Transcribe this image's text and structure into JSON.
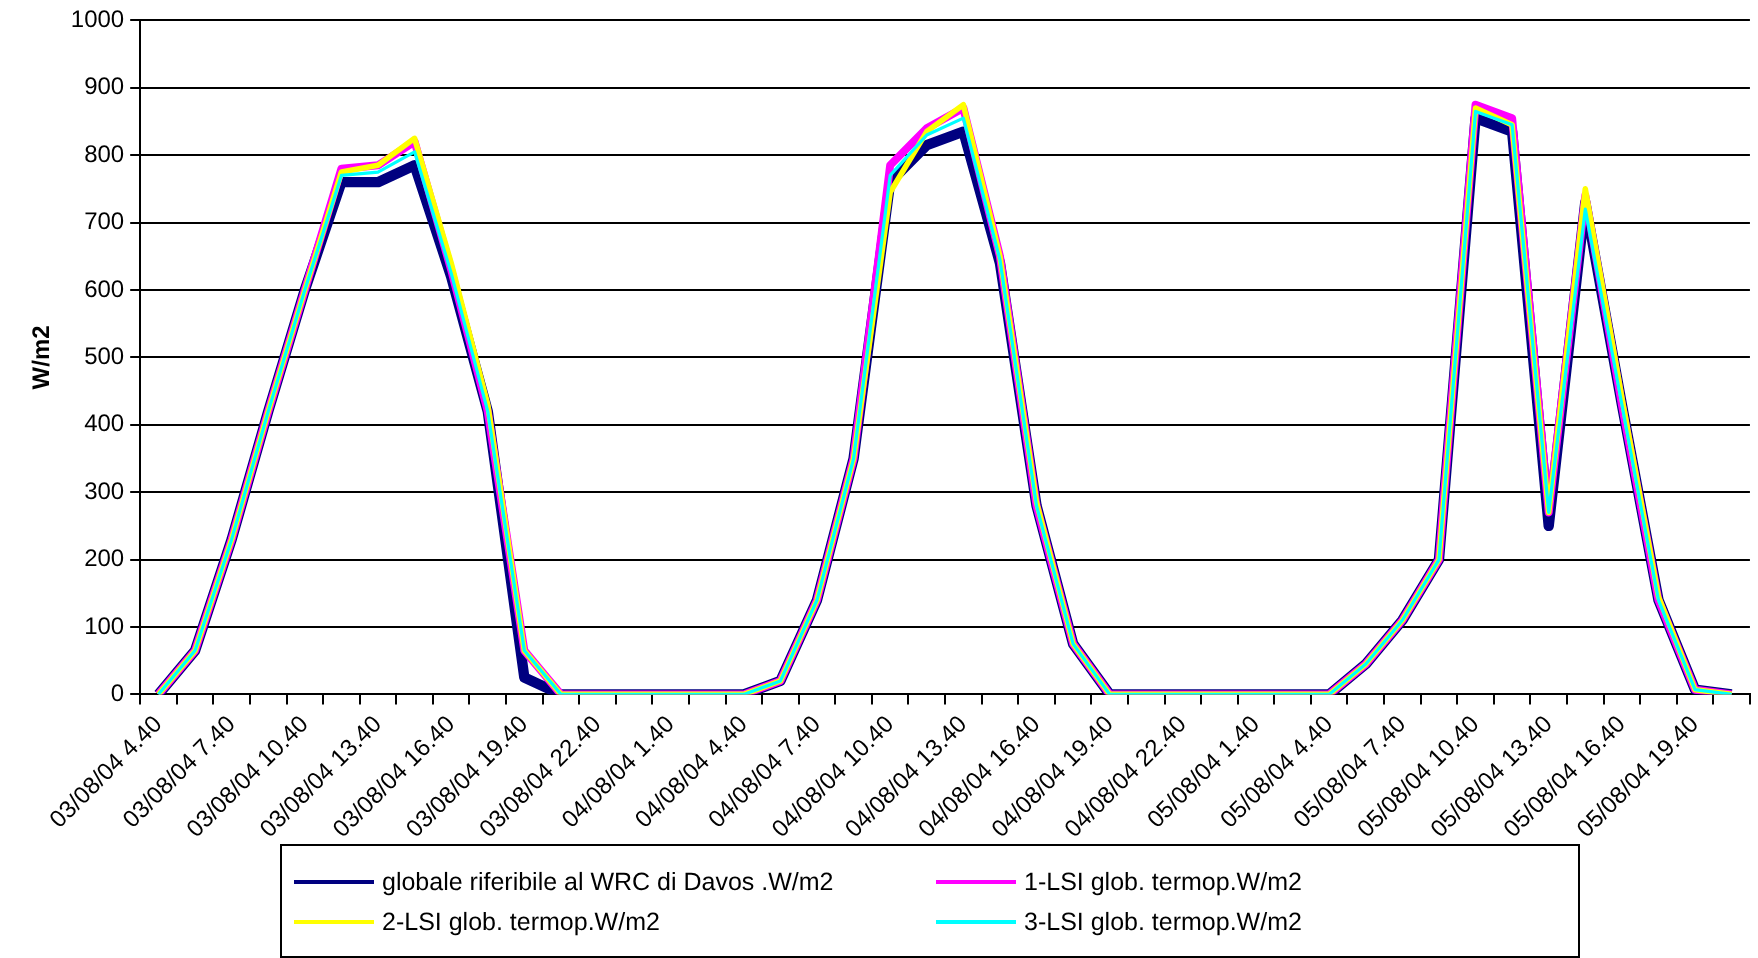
{
  "chart_data": {
    "type": "line",
    "ylabel": "W/m2",
    "categories": [
      "03/08/04 4.40",
      null,
      "03/08/04 7.40",
      null,
      "03/08/04 10.40",
      null,
      "03/08/04 13.40",
      null,
      "03/08/04 16.40",
      null,
      "03/08/04 19.40",
      null,
      "03/08/04 22.40",
      null,
      "04/08/04 1.40",
      null,
      "04/08/04 4.40",
      null,
      "04/08/04 7.40",
      null,
      "04/08/04 10.40",
      null,
      "04/08/04 13.40",
      null,
      "04/08/04 16.40",
      null,
      "04/08/04 19.40",
      null,
      "04/08/04 22.40",
      null,
      "05/08/04 1.40",
      null,
      "05/08/04 4.40",
      null,
      "05/08/04 7.40",
      null,
      "05/08/04 10.40",
      null,
      "05/08/04 13.40",
      null,
      "05/08/04 16.40",
      null,
      "05/08/04 19.40",
      null
    ],
    "series": [
      {
        "name": "globale riferibile al WRC di Davos .W/m2",
        "color": "#000080",
        "values": [
          0,
          65,
          230,
          420,
          600,
          760,
          760,
          785,
          620,
          420,
          25,
          0,
          0,
          0,
          0,
          0,
          0,
          20,
          140,
          350,
          760,
          815,
          835,
          640,
          280,
          75,
          0,
          0,
          0,
          0,
          0,
          0,
          0,
          45,
          110,
          200,
          855,
          835,
          250,
          730,
          430,
          140,
          7,
          0
        ]
      },
      {
        "name": "1-LSI glob. termop.W/m2",
        "color": "#ff00ff",
        "values": [
          0,
          65,
          230,
          420,
          600,
          780,
          785,
          820,
          630,
          420,
          65,
          0,
          0,
          0,
          0,
          0,
          0,
          20,
          140,
          350,
          785,
          840,
          870,
          650,
          280,
          75,
          0,
          0,
          0,
          0,
          0,
          0,
          0,
          45,
          110,
          200,
          875,
          855,
          270,
          740,
          430,
          140,
          7,
          0
        ]
      },
      {
        "name": "2-LSI glob. termop.W/m2",
        "color": "#ffff00",
        "values": [
          0,
          65,
          230,
          420,
          600,
          775,
          785,
          825,
          640,
          430,
          65,
          0,
          0,
          0,
          0,
          0,
          0,
          20,
          140,
          350,
          745,
          835,
          875,
          650,
          285,
          75,
          0,
          0,
          0,
          0,
          0,
          0,
          0,
          45,
          110,
          200,
          870,
          845,
          270,
          750,
          440,
          145,
          7,
          0
        ]
      },
      {
        "name": "3-LSI glob. termop.W/m2",
        "color": "#00ffff",
        "values": [
          0,
          65,
          230,
          420,
          600,
          770,
          775,
          805,
          625,
          420,
          65,
          0,
          0,
          0,
          0,
          0,
          0,
          20,
          140,
          350,
          770,
          830,
          855,
          645,
          280,
          75,
          0,
          0,
          0,
          0,
          0,
          0,
          0,
          45,
          110,
          200,
          865,
          845,
          270,
          720,
          430,
          140,
          7,
          0
        ]
      }
    ],
    "ylim": [
      0,
      1000
    ],
    "yticks": [
      0,
      100,
      200,
      300,
      400,
      500,
      600,
      700,
      800,
      900,
      1000
    ],
    "grid": "y",
    "legend": "bottom",
    "marker": "none",
    "line_style": "solid"
  }
}
